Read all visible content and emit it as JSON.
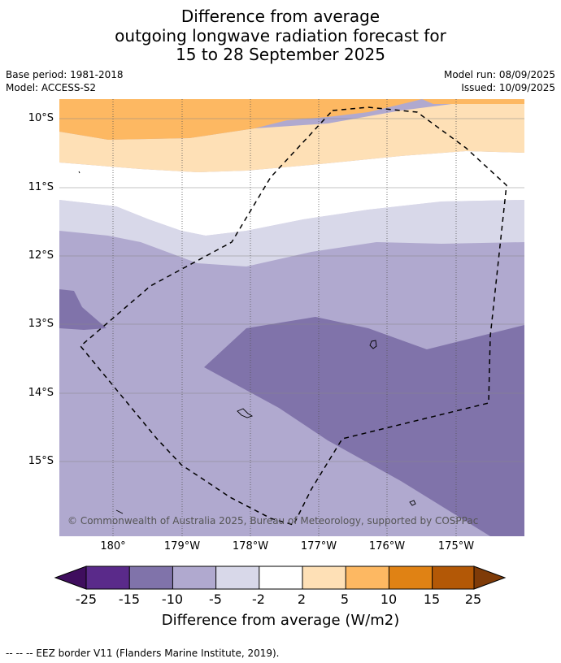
{
  "title": {
    "line1": "Difference from average",
    "line2": "outgoing longwave radiation forecast for",
    "line3": "15 to 28 September 2025"
  },
  "meta": {
    "base_period": "Base period: 1981-2018",
    "model": "Model: ACCESS-S2",
    "model_run": "Model run: 08/09/2025",
    "issued": "Issued: 10/09/2025"
  },
  "map": {
    "lat_labels": [
      "10°S",
      "11°S",
      "12°S",
      "13°S",
      "14°S",
      "15°S"
    ],
    "lon_labels": [
      "180°",
      "179°W",
      "178°W",
      "177°W",
      "176°W",
      "175°W"
    ],
    "copyright": "© Commonwealth of Australia 2025, Bureau of Meteorology, supported by COSPPac",
    "colors": {
      "c_m25": "#3f0e5e",
      "c_m15": "#5a2a8a",
      "c_m10": "#8073aa",
      "c_m5": "#b0a9cf",
      "c_m2": "#d8d8e9",
      "c_0": "#ffffff",
      "c_2": "#fee0b6",
      "c_5": "#fdb862",
      "c_10": "#e08214",
      "c_15": "#b35806",
      "c_25": "#7f3b08"
    }
  },
  "colorbar": {
    "labels": [
      "-25",
      "-15",
      "-10",
      "-5",
      "-2",
      "2",
      "5",
      "10",
      "15",
      "25"
    ],
    "title": "Difference from average (W/m2)"
  },
  "legend": {
    "eez": "--  --  -- EEZ border V11 (Flanders Marine Institute, 2019)."
  }
}
